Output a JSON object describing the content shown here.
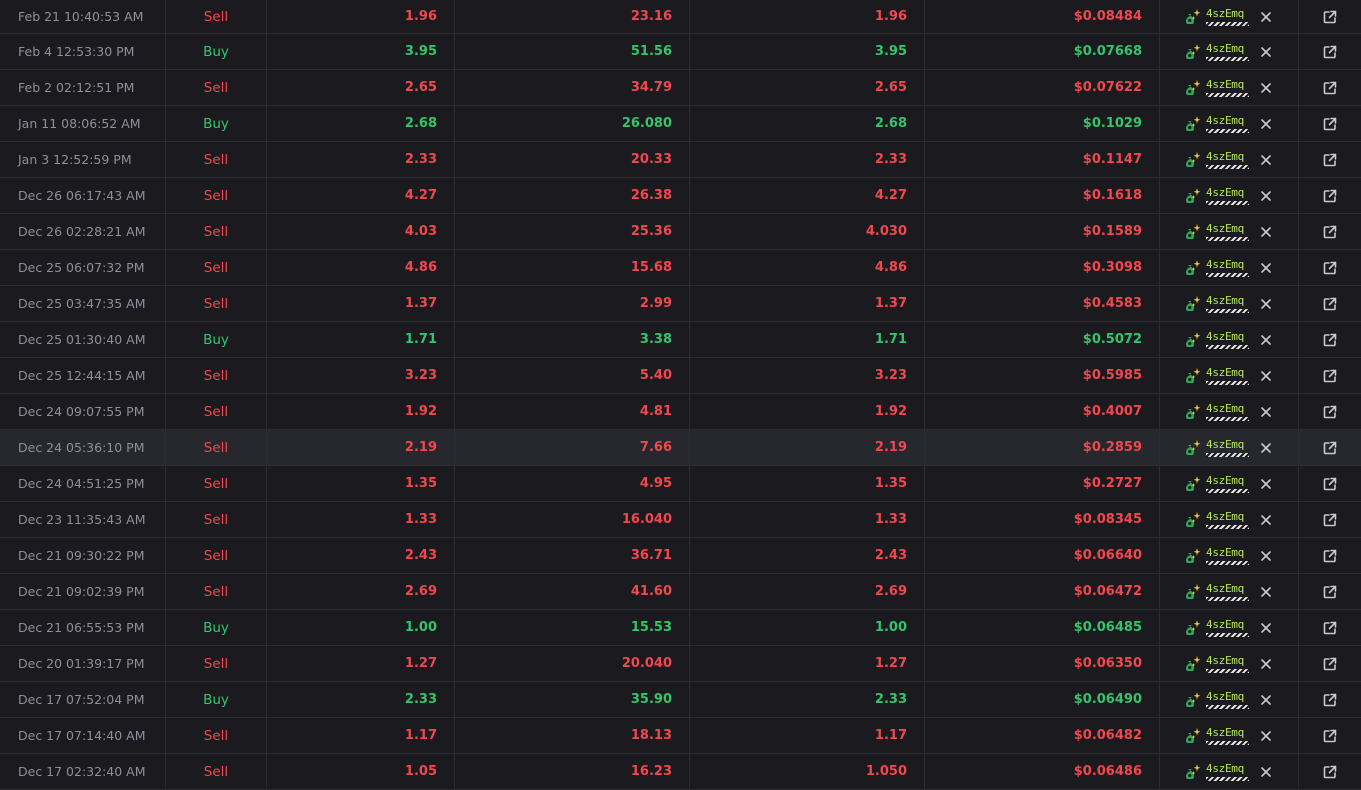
{
  "colors": {
    "sell": "#f1474f",
    "buy": "#34c46a",
    "address": "#b6e65c"
  },
  "icons": {
    "maker": "money-bag-sparkle-icon",
    "remove": "close-icon",
    "link": "external-link-icon"
  },
  "rows": [
    {
      "date": "Feb 21 10:40:53 AM",
      "type": "Sell",
      "amount": "1.96",
      "tokens": "23.16",
      "value": "1.96",
      "price": "$0.08484",
      "maker": "4szEmq"
    },
    {
      "date": "Feb 4 12:53:30 PM",
      "type": "Buy",
      "amount": "3.95",
      "tokens": "51.56",
      "value": "3.95",
      "price": "$0.07668",
      "maker": "4szEmq"
    },
    {
      "date": "Feb 2 02:12:51 PM",
      "type": "Sell",
      "amount": "2.65",
      "tokens": "34.79",
      "value": "2.65",
      "price": "$0.07622",
      "maker": "4szEmq"
    },
    {
      "date": "Jan 11 08:06:52 AM",
      "type": "Buy",
      "amount": "2.68",
      "tokens": "26.080",
      "value": "2.68",
      "price": "$0.1029",
      "maker": "4szEmq"
    },
    {
      "date": "Jan 3 12:52:59 PM",
      "type": "Sell",
      "amount": "2.33",
      "tokens": "20.33",
      "value": "2.33",
      "price": "$0.1147",
      "maker": "4szEmq"
    },
    {
      "date": "Dec 26 06:17:43 AM",
      "type": "Sell",
      "amount": "4.27",
      "tokens": "26.38",
      "value": "4.27",
      "price": "$0.1618",
      "maker": "4szEmq"
    },
    {
      "date": "Dec 26 02:28:21 AM",
      "type": "Sell",
      "amount": "4.03",
      "tokens": "25.36",
      "value": "4.030",
      "price": "$0.1589",
      "maker": "4szEmq"
    },
    {
      "date": "Dec 25 06:07:32 PM",
      "type": "Sell",
      "amount": "4.86",
      "tokens": "15.68",
      "value": "4.86",
      "price": "$0.3098",
      "maker": "4szEmq"
    },
    {
      "date": "Dec 25 03:47:35 AM",
      "type": "Sell",
      "amount": "1.37",
      "tokens": "2.99",
      "value": "1.37",
      "price": "$0.4583",
      "maker": "4szEmq"
    },
    {
      "date": "Dec 25 01:30:40 AM",
      "type": "Buy",
      "amount": "1.71",
      "tokens": "3.38",
      "value": "1.71",
      "price": "$0.5072",
      "maker": "4szEmq"
    },
    {
      "date": "Dec 25 12:44:15 AM",
      "type": "Sell",
      "amount": "3.23",
      "tokens": "5.40",
      "value": "3.23",
      "price": "$0.5985",
      "maker": "4szEmq"
    },
    {
      "date": "Dec 24 09:07:55 PM",
      "type": "Sell",
      "amount": "1.92",
      "tokens": "4.81",
      "value": "1.92",
      "price": "$0.4007",
      "maker": "4szEmq"
    },
    {
      "date": "Dec 24 05:36:10 PM",
      "type": "Sell",
      "amount": "2.19",
      "tokens": "7.66",
      "value": "2.19",
      "price": "$0.2859",
      "maker": "4szEmq",
      "highlighted": true
    },
    {
      "date": "Dec 24 04:51:25 PM",
      "type": "Sell",
      "amount": "1.35",
      "tokens": "4.95",
      "value": "1.35",
      "price": "$0.2727",
      "maker": "4szEmq"
    },
    {
      "date": "Dec 23 11:35:43 AM",
      "type": "Sell",
      "amount": "1.33",
      "tokens": "16.040",
      "value": "1.33",
      "price": "$0.08345",
      "maker": "4szEmq"
    },
    {
      "date": "Dec 21 09:30:22 PM",
      "type": "Sell",
      "amount": "2.43",
      "tokens": "36.71",
      "value": "2.43",
      "price": "$0.06640",
      "maker": "4szEmq"
    },
    {
      "date": "Dec 21 09:02:39 PM",
      "type": "Sell",
      "amount": "2.69",
      "tokens": "41.60",
      "value": "2.69",
      "price": "$0.06472",
      "maker": "4szEmq"
    },
    {
      "date": "Dec 21 06:55:53 PM",
      "type": "Buy",
      "amount": "1.00",
      "tokens": "15.53",
      "value": "1.00",
      "price": "$0.06485",
      "maker": "4szEmq"
    },
    {
      "date": "Dec 20 01:39:17 PM",
      "type": "Sell",
      "amount": "1.27",
      "tokens": "20.040",
      "value": "1.27",
      "price": "$0.06350",
      "maker": "4szEmq"
    },
    {
      "date": "Dec 17 07:52:04 PM",
      "type": "Buy",
      "amount": "2.33",
      "tokens": "35.90",
      "value": "2.33",
      "price": "$0.06490",
      "maker": "4szEmq"
    },
    {
      "date": "Dec 17 07:14:40 AM",
      "type": "Sell",
      "amount": "1.17",
      "tokens": "18.13",
      "value": "1.17",
      "price": "$0.06482",
      "maker": "4szEmq"
    },
    {
      "date": "Dec 17 02:32:40 AM",
      "type": "Sell",
      "amount": "1.05",
      "tokens": "16.23",
      "value": "1.050",
      "price": "$0.06486",
      "maker": "4szEmq"
    }
  ]
}
